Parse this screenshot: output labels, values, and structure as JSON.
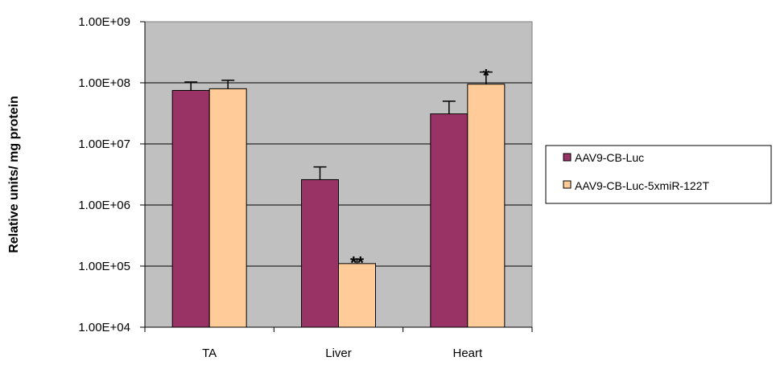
{
  "chart_data": {
    "type": "bar",
    "categories": [
      "TA",
      "Liver",
      "Heart"
    ],
    "series": [
      {
        "name": "AAV9-CB-Luc",
        "values": [
          75000000,
          2600000,
          31000000
        ],
        "errors": [
          103000000,
          4200000,
          50000000
        ],
        "color": "#993366"
      },
      {
        "name": "AAV9-CB-Luc-5xmiR-122T",
        "values": [
          80000000,
          110000,
          95000000
        ],
        "errors": [
          110000000,
          130000,
          150000000
        ],
        "color": "#FFCC99"
      }
    ],
    "annotations": [
      {
        "category": "Liver",
        "series": 1,
        "text": "**"
      },
      {
        "category": "Heart",
        "series": 1,
        "text": "*"
      }
    ],
    "ylabel": "Relative units/ mg protein",
    "yscale": "log",
    "ylim": [
      10000,
      1000000000
    ],
    "yticks": [
      10000,
      100000,
      1000000,
      10000000,
      100000000,
      1000000000
    ],
    "ytick_labels": [
      "1.00E+04",
      "1.00E+05",
      "1.00E+06",
      "1.00E+07",
      "1.00E+08",
      "1.00E+09"
    ],
    "grid": true,
    "plot_background": "#C0C0C0",
    "legend": "right"
  }
}
